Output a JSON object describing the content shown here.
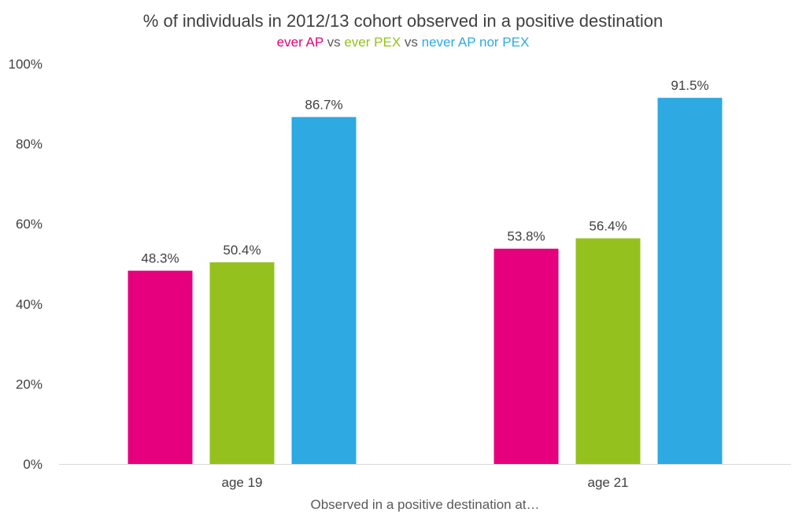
{
  "chart_data": {
    "type": "bar",
    "title": "% of individuals in 2012/13 cohort observed in a positive destination",
    "subtitle": {
      "parts": [
        {
          "text": "ever AP",
          "color": "#E6007E"
        },
        {
          "text": " vs ",
          "color": "#595959"
        },
        {
          "text": "ever PEX",
          "color": "#95C11F"
        },
        {
          "text": " vs ",
          "color": "#595959"
        },
        {
          "text": "never AP nor PEX",
          "color": "#2EA9E1"
        }
      ]
    },
    "xlabel": "Observed in a positive destination at…",
    "ylabel": "",
    "categories": [
      "age 19",
      "age 21"
    ],
    "series": [
      {
        "name": "ever AP",
        "color": "#E6007E",
        "values": [
          48.3,
          53.8
        ],
        "labels": [
          "48.3%",
          "53.8%"
        ]
      },
      {
        "name": "ever PEX",
        "color": "#95C11F",
        "values": [
          50.4,
          56.4
        ],
        "labels": [
          "50.4%",
          "56.4%"
        ]
      },
      {
        "name": "never AP nor PEX",
        "color": "#2EA9E1",
        "values": [
          86.7,
          91.5
        ],
        "labels": [
          "86.7%",
          "91.5%"
        ]
      }
    ],
    "ylim": [
      0,
      100
    ],
    "yticks": [
      0,
      20,
      40,
      60,
      80,
      100
    ],
    "ytick_labels": [
      "0%",
      "20%",
      "40%",
      "60%",
      "80%",
      "100%"
    ],
    "grid": false,
    "legend": "none"
  }
}
